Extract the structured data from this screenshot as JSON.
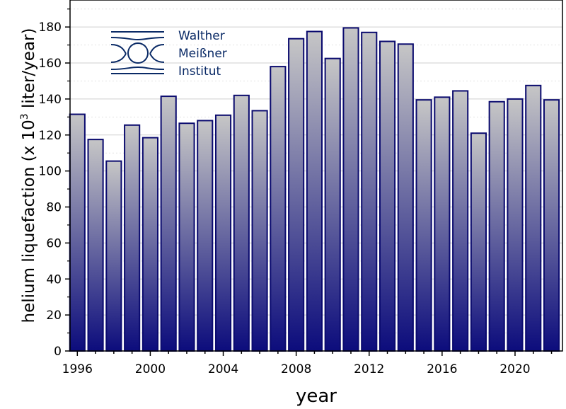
{
  "chart_data": {
    "type": "bar",
    "xlabel": "year",
    "ylabel_prefix": "helium liquefaction  (x 10",
    "ylabel_exponent": "3",
    "ylabel_suffix": " liter/year)",
    "x": [
      1996,
      1997,
      1998,
      1999,
      2000,
      2001,
      2002,
      2003,
      2004,
      2005,
      2006,
      2007,
      2008,
      2009,
      2010,
      2011,
      2012,
      2013,
      2014,
      2015,
      2016,
      2017,
      2018,
      2019,
      2020,
      2021,
      2022
    ],
    "values": [
      131.5,
      117.5,
      105.5,
      125.5,
      118.5,
      141.5,
      126.5,
      128,
      131,
      142,
      133.5,
      158,
      173.5,
      177.5,
      162.5,
      179.5,
      177,
      172,
      170.5,
      139.5,
      141,
      144.5,
      121,
      138.5,
      140,
      147.5,
      139.5
    ],
    "xlim": [
      1995.6,
      2022.6
    ],
    "ylim": [
      0,
      195
    ],
    "x_ticks": [
      "1996",
      "2000",
      "2004",
      "2008",
      "2012",
      "2016",
      "2020"
    ],
    "x_tick_values": [
      1996,
      2000,
      2004,
      2008,
      2012,
      2016,
      2020
    ],
    "y_ticks": [
      "0",
      "20",
      "40",
      "60",
      "80",
      "100",
      "120",
      "140",
      "160",
      "180"
    ],
    "y_tick_values": [
      0,
      20,
      40,
      60,
      80,
      100,
      120,
      140,
      160,
      180
    ],
    "grid": true,
    "bar_fill_top": "#c6c6c6",
    "bar_fill_bottom": "#0c0c7c",
    "bar_stroke": "#0a0a6e",
    "grid_color": "#cfcfcf"
  },
  "logo": {
    "line1": "Walther",
    "line2": "Meißner",
    "line3": "Institut",
    "color": "#0a2a66"
  }
}
